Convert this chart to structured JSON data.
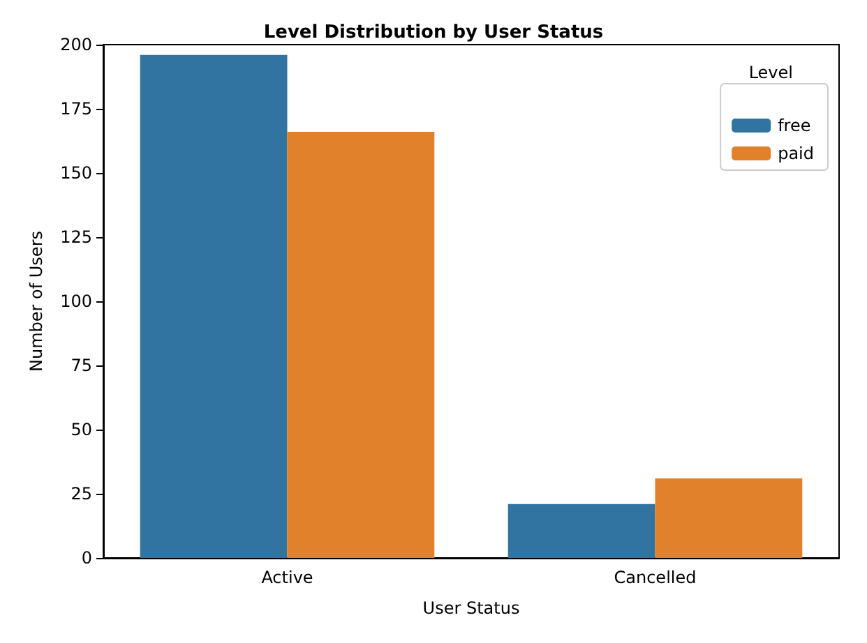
{
  "chart_data": {
    "type": "bar",
    "title": "Level Distribution by User Status",
    "xlabel": "User Status",
    "ylabel": "Number of Users",
    "legend_title": "Level",
    "categories": [
      "Active",
      "Cancelled"
    ],
    "series": [
      {
        "name": "free",
        "color": "#3274a1",
        "values": [
          196,
          21
        ]
      },
      {
        "name": "paid",
        "color": "#e1812c",
        "values": [
          166,
          31
        ]
      }
    ],
    "ylim": [
      0,
      200
    ],
    "yticks": [
      0,
      25,
      50,
      75,
      100,
      125,
      150,
      175,
      200
    ],
    "grid": false,
    "legend": "top right"
  }
}
